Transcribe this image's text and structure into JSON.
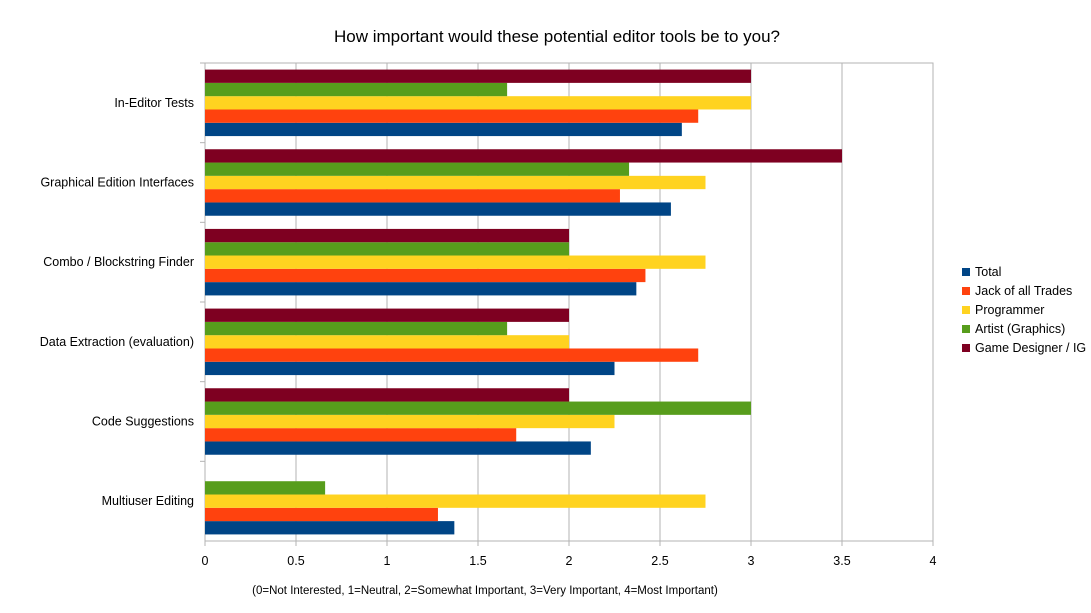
{
  "chart_data": {
    "type": "bar",
    "orientation": "horizontal",
    "title": "How important would these potential editor tools be to you?",
    "xlabel": "(0=Not Interested, 1=Neutral, 2=Somewhat Important, 3=Very Important, 4=Most Important)",
    "ylabel": "",
    "xlim": [
      0,
      4
    ],
    "xticks": [
      "0",
      "0.5",
      "1",
      "1.5",
      "2",
      "2.5",
      "3",
      "3.5",
      "4"
    ],
    "grid": true,
    "legend_position": "right",
    "categories": [
      "In-Editor Tests",
      "Graphical Edition Interfaces",
      "Combo / Blockstring Finder",
      "Data Extraction (evaluation)",
      "Code Suggestions",
      "Multiuser Editing"
    ],
    "series": [
      {
        "name": "Total",
        "color": "#004586",
        "values": [
          2.62,
          2.56,
          2.37,
          2.25,
          2.12,
          1.37
        ]
      },
      {
        "name": "Jack of all Trades",
        "color": "#ff420e",
        "values": [
          2.71,
          2.28,
          2.42,
          2.71,
          1.71,
          1.28
        ]
      },
      {
        "name": "Programmer",
        "color": "#ffd320",
        "values": [
          3.0,
          2.75,
          2.75,
          2.0,
          2.25,
          2.75
        ]
      },
      {
        "name": "Artist (Graphics)",
        "color": "#579d1c",
        "values": [
          1.66,
          2.33,
          2.0,
          1.66,
          3.0,
          0.66
        ]
      },
      {
        "name": "Game Designer / IG",
        "color": "#7e0021",
        "values": [
          3.0,
          3.5,
          2.0,
          2.0,
          2.0,
          0
        ]
      }
    ]
  }
}
